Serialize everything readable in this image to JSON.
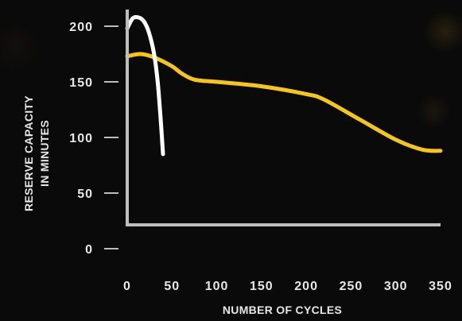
{
  "chart_data": {
    "type": "line",
    "title": "",
    "xlabel": "NUMBER OF CYCLES",
    "ylabel_line1": "RESERVE CAPACITY",
    "ylabel_line2": "IN MINUTES",
    "xlim": [
      0,
      350
    ],
    "ylim": [
      0,
      200
    ],
    "xticks": [
      "0",
      "50",
      "100",
      "150",
      "200",
      "250",
      "300",
      "350"
    ],
    "yticks": [
      "0",
      "50",
      "100",
      "150",
      "200"
    ],
    "grid": false,
    "legend": "none",
    "series": [
      {
        "color": "#ffffff",
        "points": [
          [
            0,
            198
          ],
          [
            6,
            207
          ],
          [
            12,
            208
          ],
          [
            18,
            205
          ],
          [
            24,
            195
          ],
          [
            30,
            175
          ],
          [
            34,
            150
          ],
          [
            37,
            120
          ],
          [
            40,
            85
          ]
        ]
      },
      {
        "color": "#f5c518",
        "points": [
          [
            0,
            173
          ],
          [
            15,
            175
          ],
          [
            30,
            172
          ],
          [
            50,
            164
          ],
          [
            60,
            158
          ],
          [
            75,
            152
          ],
          [
            100,
            150
          ],
          [
            150,
            146
          ],
          [
            200,
            139
          ],
          [
            220,
            134
          ],
          [
            260,
            116
          ],
          [
            300,
            98
          ],
          [
            330,
            89
          ],
          [
            350,
            88
          ]
        ]
      }
    ]
  }
}
